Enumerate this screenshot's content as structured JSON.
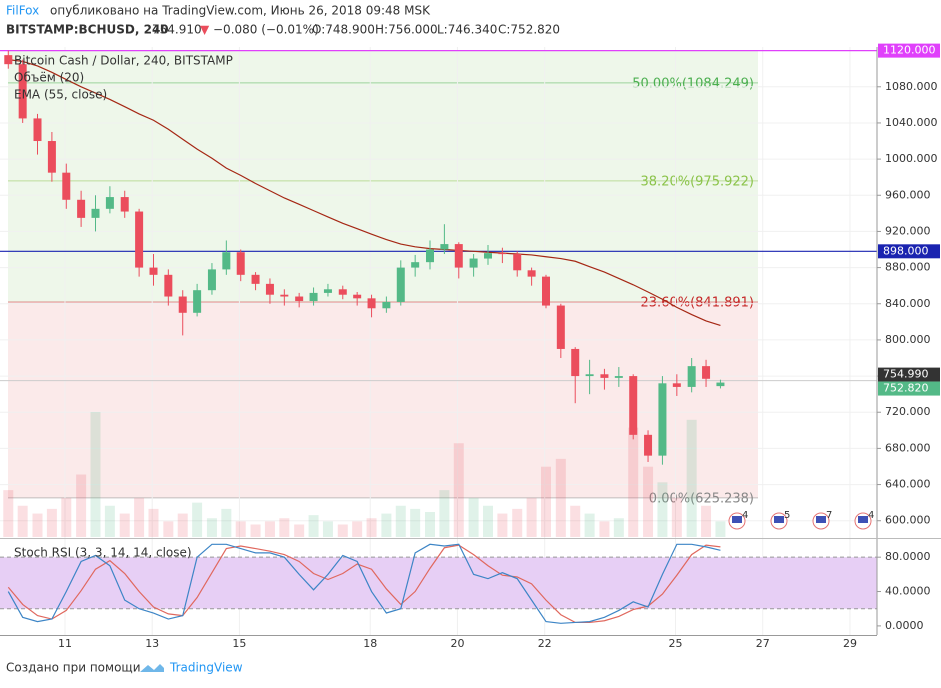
{
  "header": {
    "author": "FilFox",
    "published": "опубликовано на TradingView.com, Июнь 26, 2018 09:48 MSK",
    "symbol": "BITSTAMP:BCHUSD, 240",
    "last": "754.910",
    "arrow": "▼",
    "change": "−0.080 (−0.01%)",
    "o": "O:748.900",
    "h": "H:756.000",
    "l": "L:746.340",
    "c": "C:752.820"
  },
  "footer": {
    "made_with": "Создано при помощи",
    "brand": "TradingView"
  },
  "chart_data": {
    "type": "candlestick",
    "title": "Bitcoin Cash / Dollar, 240, BITSTAMP",
    "volume_label": "Объём (20)",
    "ema_label": "EMA (55, close)",
    "rsi_label": "Stoch RSI (3, 3, 14, 14, close)",
    "x": [
      9.7,
      10.03,
      10.37,
      10.7,
      11.03,
      11.37,
      11.7,
      12.03,
      12.37,
      12.7,
      13.03,
      13.37,
      13.7,
      14.03,
      14.37,
      14.7,
      15.03,
      15.37,
      15.7,
      16.03,
      16.37,
      16.7,
      17.03,
      17.37,
      17.7,
      18.03,
      18.37,
      18.7,
      19.03,
      19.37,
      19.7,
      20.03,
      20.37,
      20.7,
      21.03,
      21.37,
      21.7,
      22.03,
      22.37,
      22.7,
      23.03,
      23.37,
      23.7,
      24.03,
      24.37,
      24.7,
      25.03,
      25.37,
      25.7,
      26.03
    ],
    "open": [
      1115,
      1105,
      1045,
      1020,
      985,
      955,
      935,
      945,
      958,
      942,
      880,
      872,
      848,
      830,
      855,
      878,
      897,
      872,
      862,
      850,
      848,
      843,
      852,
      856,
      850,
      846,
      835,
      842,
      880,
      886,
      900,
      906,
      880,
      890,
      896,
      895,
      877,
      870,
      838,
      790,
      760,
      762,
      758,
      760,
      695,
      672,
      752,
      748,
      771,
      748.9
    ],
    "high": [
      1120,
      1110,
      1050,
      1030,
      995,
      965,
      960,
      970,
      965,
      945,
      895,
      878,
      855,
      862,
      885,
      910,
      900,
      875,
      868,
      856,
      852,
      858,
      862,
      860,
      853,
      850,
      848,
      888,
      894,
      910,
      928,
      908,
      895,
      905,
      902,
      898,
      880,
      872,
      840,
      792,
      778,
      768,
      770,
      762,
      700,
      760,
      762,
      780,
      778,
      756
    ],
    "low": [
      1100,
      1040,
      1005,
      975,
      945,
      925,
      920,
      940,
      935,
      870,
      860,
      838,
      805,
      826,
      850,
      872,
      865,
      855,
      840,
      838,
      836,
      838,
      848,
      845,
      838,
      825,
      830,
      838,
      870,
      878,
      895,
      868,
      870,
      883,
      885,
      870,
      860,
      835,
      780,
      730,
      740,
      745,
      748,
      690,
      665,
      662,
      738,
      742,
      748,
      746.34
    ],
    "close": [
      1105,
      1045,
      1020,
      985,
      955,
      935,
      945,
      958,
      942,
      880,
      872,
      848,
      830,
      855,
      878,
      897,
      872,
      862,
      850,
      848,
      843,
      852,
      856,
      850,
      846,
      835,
      842,
      880,
      886,
      900,
      906,
      880,
      890,
      896,
      895,
      877,
      870,
      838,
      790,
      760,
      762,
      758,
      760,
      695,
      672,
      752,
      748,
      771,
      757,
      752.82
    ],
    "volume": [
      30,
      20,
      15,
      18,
      25,
      40,
      80,
      20,
      15,
      25,
      18,
      10,
      15,
      22,
      12,
      18,
      10,
      8,
      10,
      12,
      8,
      14,
      10,
      8,
      10,
      12,
      15,
      20,
      18,
      16,
      30,
      60,
      25,
      20,
      15,
      18,
      25,
      45,
      50,
      20,
      15,
      10,
      12,
      70,
      45,
      35,
      25,
      75,
      20,
      10
    ],
    "ema": [
      1110,
      1108,
      1103,
      1096,
      1088,
      1080,
      1073,
      1066,
      1058,
      1050,
      1043,
      1033,
      1022,
      1011,
      1001,
      990,
      982,
      973,
      965,
      957,
      950,
      943,
      936,
      929,
      923,
      917,
      911,
      906,
      903,
      901,
      900,
      899,
      898,
      897,
      896,
      895,
      894,
      892,
      890,
      887,
      881,
      875,
      868,
      861,
      853,
      845,
      836,
      828,
      821,
      816
    ],
    "stoch_k": [
      40,
      10,
      5,
      8,
      40,
      75,
      82,
      70,
      30,
      20,
      15,
      8,
      12,
      80,
      95,
      95,
      90,
      85,
      85,
      80,
      60,
      42,
      60,
      82,
      75,
      40,
      15,
      20,
      85,
      95,
      93,
      95,
      60,
      55,
      62,
      55,
      30,
      5,
      3,
      4,
      5,
      10,
      18,
      28,
      22,
      60,
      95,
      95,
      92,
      88
    ],
    "stoch_d": [
      45,
      25,
      12,
      8,
      18,
      41,
      66,
      76,
      61,
      40,
      22,
      14,
      12,
      33,
      62,
      90,
      93,
      90,
      87,
      83,
      75,
      61,
      54,
      61,
      72,
      66,
      43,
      25,
      40,
      67,
      91,
      94,
      83,
      70,
      59,
      57,
      49,
      30,
      13,
      4,
      4,
      6,
      11,
      19,
      23,
      37,
      59,
      83,
      94,
      92
    ],
    "up_color": "#53b987",
    "down_color": "#eb4d5c",
    "ema_color": "#a52714",
    "k_color": "#3d85c6",
    "d_color": "#e0685e",
    "xlim": [
      9.51,
      29.62
    ],
    "xticks": [
      11,
      13,
      15,
      18,
      20,
      22,
      25,
      27,
      29
    ],
    "ylim": [
      582,
      1124
    ],
    "yticks": [
      {
        "value": 600,
        "label": "600.000"
      },
      {
        "value": 640,
        "label": "640.000"
      },
      {
        "value": 680,
        "label": "680.000"
      },
      {
        "value": 720,
        "label": "720.000"
      },
      {
        "value": 760,
        "label": "760.000"
      },
      {
        "value": 800,
        "label": "800.000"
      },
      {
        "value": 840,
        "label": "840.000"
      },
      {
        "value": 880,
        "label": "880.000"
      },
      {
        "value": 920,
        "label": "920.000"
      },
      {
        "value": 960,
        "label": "960.000"
      },
      {
        "value": 1000,
        "label": "1000.000"
      },
      {
        "value": 1040,
        "label": "1040.000"
      },
      {
        "value": 1080,
        "label": "1080.000"
      }
    ],
    "rsi_ylim": [
      -10.6,
      100
    ],
    "rsi_yticks": [
      {
        "value": 0,
        "label": "0.0000"
      },
      {
        "value": 40,
        "label": "40.0000"
      },
      {
        "value": 80,
        "label": "80.0000"
      }
    ],
    "rsi_band": [
      20,
      80
    ],
    "fib_levels": [
      {
        "value": 1084.249,
        "label": "50.00%(1084.249)",
        "color": "#4caf50"
      },
      {
        "value": 975.922,
        "label": "38.20%(975.922)",
        "color": "#8bc34a"
      },
      {
        "value": 841.891,
        "label": "23.60%(841.891)",
        "color": "#c62828"
      },
      {
        "value": 625.238,
        "label": "0.00%(625.238)",
        "color": "#888888"
      }
    ],
    "hlines": [
      {
        "value": 1120,
        "color": "#e040fb"
      },
      {
        "value": 898,
        "color": "#1a23b0"
      }
    ],
    "price_tags": [
      {
        "value": 1120,
        "label": "1120.000",
        "color": "#e040fb"
      },
      {
        "value": 898,
        "label": "898.000",
        "color": "#1a23b0"
      },
      {
        "value": 754.99,
        "label": "754.990",
        "color": "#333333"
      },
      {
        "value": 752.82,
        "label": "752.820",
        "color": "#53b987"
      }
    ],
    "events": [
      4,
      5,
      7,
      4
    ]
  }
}
